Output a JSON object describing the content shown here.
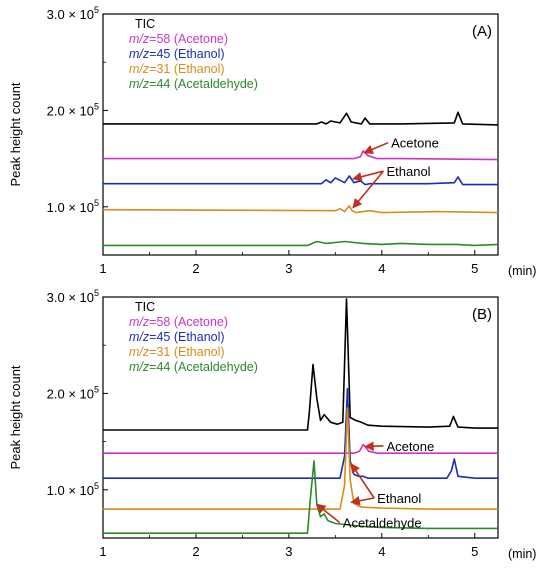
{
  "chart_data": [
    {
      "type": "line",
      "panel_label": "(A)",
      "ylabel": "Peak height count",
      "xunit": "(min)",
      "xlim": [
        1,
        5.25
      ],
      "ylim": [
        0.5,
        3.0
      ],
      "y_scale": "× 10^5",
      "x_ticks": [
        "1",
        "2",
        "3",
        "4",
        "5"
      ],
      "y_ticks": [
        {
          "value": 1.0,
          "mantissa": "1.0",
          "sep": " × 10",
          "exp": "5"
        },
        {
          "value": 2.0,
          "mantissa": "2.0",
          "sep": " × 10",
          "exp": "5"
        },
        {
          "value": 3.0,
          "mantissa": "3.0",
          "sep": " × 10",
          "exp": "5"
        }
      ],
      "legend": [
        {
          "prefix": "",
          "suffix": "TIC",
          "color": "#000000"
        },
        {
          "prefix": "m/z",
          "suffix": "=58 (Acetone)",
          "color": "#cc33cc"
        },
        {
          "prefix": "m/z",
          "suffix": "=45 (Ethanol)",
          "color": "#1a2fb8"
        },
        {
          "prefix": "m/z",
          "suffix": "=31 (Ethanol)",
          "color": "#d98c1a"
        },
        {
          "prefix": "m/z",
          "suffix": "=44 (Acetaldehyde)",
          "color": "#2a8a2a"
        }
      ],
      "series": [
        {
          "name": "TIC",
          "color": "#000000",
          "x": [
            1.0,
            3.3,
            3.35,
            3.4,
            3.45,
            3.55,
            3.62,
            3.67,
            3.72,
            3.78,
            3.82,
            3.87,
            4.2,
            4.78,
            4.82,
            4.87,
            5.25
          ],
          "y": [
            1.86,
            1.86,
            1.88,
            1.86,
            1.89,
            1.87,
            1.97,
            1.88,
            1.87,
            1.86,
            1.92,
            1.86,
            1.86,
            1.87,
            1.98,
            1.86,
            1.85
          ]
        },
        {
          "name": "m/z=58 (Acetone)",
          "color": "#cc33cc",
          "x": [
            1.0,
            3.7,
            3.77,
            3.8,
            3.85,
            3.95,
            4.2,
            5.25
          ],
          "y": [
            1.5,
            1.5,
            1.52,
            1.58,
            1.53,
            1.5,
            1.5,
            1.49
          ]
        },
        {
          "name": "m/z=45 (Ethanol)",
          "color": "#1a2fb8",
          "x": [
            1.0,
            3.35,
            3.4,
            3.45,
            3.5,
            3.6,
            3.65,
            3.7,
            3.77,
            3.82,
            3.87,
            4.5,
            4.78,
            4.82,
            4.87,
            5.25
          ],
          "y": [
            1.24,
            1.24,
            1.28,
            1.25,
            1.3,
            1.25,
            1.32,
            1.25,
            1.27,
            1.23,
            1.24,
            1.24,
            1.25,
            1.31,
            1.23,
            1.23
          ]
        },
        {
          "name": "m/z=31 (Ethanol)",
          "color": "#d98c1a",
          "x": [
            1.0,
            3.5,
            3.55,
            3.6,
            3.65,
            3.68,
            3.72,
            3.8,
            3.87,
            4.0,
            4.6,
            5.25
          ],
          "y": [
            0.97,
            0.96,
            0.98,
            0.95,
            1.01,
            0.96,
            0.94,
            0.95,
            0.96,
            0.94,
            0.95,
            0.94
          ]
        },
        {
          "name": "m/z=44 (Acetaldehyde)",
          "color": "#2a8a2a",
          "x": [
            1.0,
            3.2,
            3.3,
            3.4,
            3.5,
            3.6,
            3.7,
            3.8,
            4.0,
            4.2,
            4.5,
            4.8,
            5.0,
            5.25
          ],
          "y": [
            0.6,
            0.6,
            0.64,
            0.62,
            0.63,
            0.64,
            0.63,
            0.62,
            0.61,
            0.62,
            0.61,
            0.61,
            0.6,
            0.61
          ]
        }
      ],
      "annotations": [
        {
          "text": "Acetone",
          "color": "#c0301a",
          "label_x": 4.1,
          "label_y": 1.665,
          "arrow_tips": [
            {
              "x": 3.81,
              "y": 1.56
            }
          ]
        },
        {
          "text": "Ethanol",
          "color": "#c0301a",
          "label_x": 4.05,
          "label_y": 1.37,
          "arrow_tips": [
            {
              "x": 3.69,
              "y": 1.29
            },
            {
              "x": 3.69,
              "y": 0.99
            }
          ]
        }
      ]
    },
    {
      "type": "line",
      "panel_label": "(B)",
      "ylabel": "Peak height count",
      "xunit": "(min)",
      "xlim": [
        1,
        5.25
      ],
      "ylim": [
        0.5,
        3.0
      ],
      "y_scale": "× 10^5",
      "x_ticks": [
        "1",
        "2",
        "3",
        "4",
        "5"
      ],
      "y_ticks": [
        {
          "value": 1.0,
          "mantissa": "1.0",
          "sep": " × 10",
          "exp": "5"
        },
        {
          "value": 2.0,
          "mantissa": "2.0",
          "sep": " × 10",
          "exp": "5"
        },
        {
          "value": 3.0,
          "mantissa": "3.0",
          "sep": " × 10",
          "exp": "5"
        }
      ],
      "legend": [
        {
          "prefix": "",
          "suffix": "TIC",
          "color": "#000000"
        },
        {
          "prefix": "m/z",
          "suffix": "=58 (Acetone)",
          "color": "#cc33cc"
        },
        {
          "prefix": "m/z",
          "suffix": "=45 (Ethanol)",
          "color": "#1a2fb8"
        },
        {
          "prefix": "m/z",
          "suffix": "=31 (Ethanol)",
          "color": "#d98c1a"
        },
        {
          "prefix": "m/z",
          "suffix": "=44 (Acetaldehyde)",
          "color": "#2a8a2a"
        }
      ],
      "series": [
        {
          "name": "TIC",
          "color": "#000000",
          "x": [
            1.0,
            3.2,
            3.22,
            3.26,
            3.3,
            3.34,
            3.38,
            3.45,
            3.52,
            3.58,
            3.62,
            3.66,
            3.72,
            3.78,
            3.85,
            4.0,
            4.5,
            4.73,
            4.77,
            4.82,
            5.0,
            5.25
          ],
          "y": [
            1.62,
            1.62,
            1.8,
            2.3,
            1.95,
            1.72,
            1.78,
            1.7,
            1.68,
            1.7,
            2.98,
            1.75,
            1.72,
            1.7,
            1.67,
            1.66,
            1.65,
            1.66,
            1.76,
            1.65,
            1.64,
            1.64
          ]
        },
        {
          "name": "m/z=58 (Acetone)",
          "color": "#cc33cc",
          "x": [
            1.0,
            3.7,
            3.76,
            3.8,
            3.86,
            3.95,
            4.2,
            5.25
          ],
          "y": [
            1.38,
            1.38,
            1.4,
            1.47,
            1.4,
            1.38,
            1.38,
            1.38
          ]
        },
        {
          "name": "m/z=45 (Ethanol)",
          "color": "#1a2fb8",
          "x": [
            1.0,
            3.55,
            3.6,
            3.63,
            3.66,
            3.7,
            3.75,
            3.8,
            3.85,
            4.0,
            4.7,
            4.75,
            4.78,
            4.82,
            5.0,
            5.25
          ],
          "y": [
            1.12,
            1.12,
            1.35,
            2.05,
            1.3,
            1.16,
            1.14,
            1.14,
            1.12,
            1.12,
            1.12,
            1.2,
            1.32,
            1.14,
            1.12,
            1.12
          ]
        },
        {
          "name": "m/z=31 (Ethanol)",
          "color": "#d98c1a",
          "x": [
            1.0,
            3.55,
            3.6,
            3.63,
            3.66,
            3.7,
            3.75,
            3.8,
            4.0,
            4.5,
            5.25
          ],
          "y": [
            0.8,
            0.8,
            1.05,
            1.85,
            1.1,
            0.86,
            0.83,
            0.82,
            0.81,
            0.8,
            0.8
          ]
        },
        {
          "name": "m/z=44 (Acetaldehyde)",
          "color": "#2a8a2a",
          "x": [
            1.0,
            3.2,
            3.23,
            3.27,
            3.3,
            3.34,
            3.38,
            3.42,
            3.5,
            3.6,
            3.7,
            3.8,
            4.0,
            4.5,
            5.0,
            5.25
          ],
          "y": [
            0.55,
            0.55,
            0.9,
            1.3,
            0.85,
            0.72,
            0.75,
            0.68,
            0.65,
            0.64,
            0.63,
            0.62,
            0.61,
            0.6,
            0.6,
            0.6
          ]
        }
      ],
      "annotations": [
        {
          "text": "Acetone",
          "color": "#c0301a",
          "label_x": 4.05,
          "label_y": 1.455,
          "arrow_tips": [
            {
              "x": 3.82,
              "y": 1.45
            }
          ]
        },
        {
          "text": "Ethanol",
          "color": "#c0301a",
          "label_x": 3.95,
          "label_y": 0.915,
          "arrow_tips": [
            {
              "x": 3.67,
              "y": 1.27
            },
            {
              "x": 3.67,
              "y": 0.87
            }
          ]
        },
        {
          "text": "Acetaldehyde",
          "color": "#c0301a",
          "label_x": 3.58,
          "label_y": 0.66,
          "arrow_tips": [
            {
              "x": 3.3,
              "y": 0.85
            }
          ]
        }
      ]
    }
  ]
}
